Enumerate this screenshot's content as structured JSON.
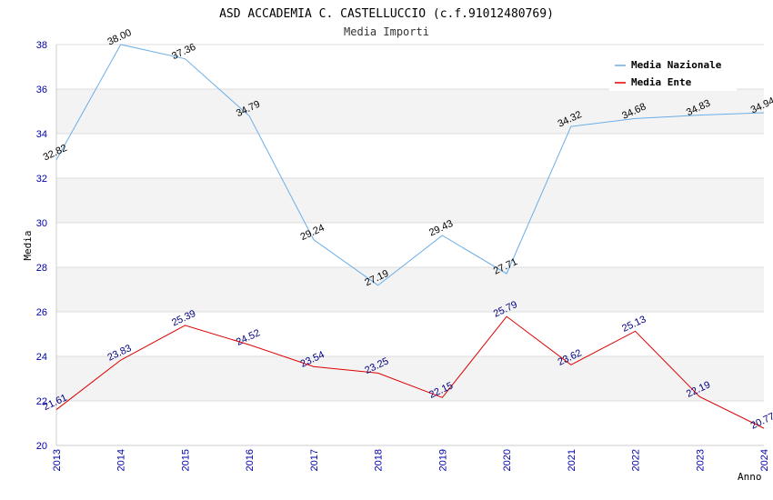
{
  "chart_data": {
    "type": "line",
    "title": "ASD ACCADEMIA C. CASTELLUCCIO (c.f.91012480769)",
    "subtitle": "Media Importi",
    "xlabel": "Anno",
    "ylabel": "Media",
    "ylim": [
      20,
      38
    ],
    "yticks": [
      "20",
      "22",
      "24",
      "26",
      "28",
      "30",
      "32",
      "34",
      "36",
      "38"
    ],
    "categories": [
      "2013",
      "2014",
      "2015",
      "2016",
      "2017",
      "2018",
      "2019",
      "2020",
      "2021",
      "2022",
      "2023",
      "2024"
    ],
    "legend_position": "top-right",
    "series": [
      {
        "name": "Media Nazionale",
        "color": "#6aaee8",
        "label_color": "#000000",
        "values": [
          32.82,
          38.0,
          37.36,
          34.79,
          29.24,
          27.19,
          29.43,
          27.71,
          34.32,
          34.68,
          34.83,
          34.94
        ],
        "labels": [
          "32.82",
          "38.00",
          "37.36",
          "34.79",
          "29.24",
          "27.19",
          "29.43",
          "27.71",
          "34.32",
          "34.68",
          "34.83",
          "34.94"
        ]
      },
      {
        "name": "Media Ente",
        "color": "#dd0000",
        "label_color": "#000080",
        "values": [
          21.61,
          23.83,
          25.39,
          24.52,
          23.54,
          23.25,
          22.15,
          25.79,
          23.62,
          25.13,
          22.19,
          20.77
        ],
        "labels": [
          "21.61",
          "23.83",
          "25.39",
          "24.52",
          "23.54",
          "23.25",
          "22.15",
          "25.79",
          "23.62",
          "25.13",
          "22.19",
          "20.77"
        ]
      }
    ]
  }
}
